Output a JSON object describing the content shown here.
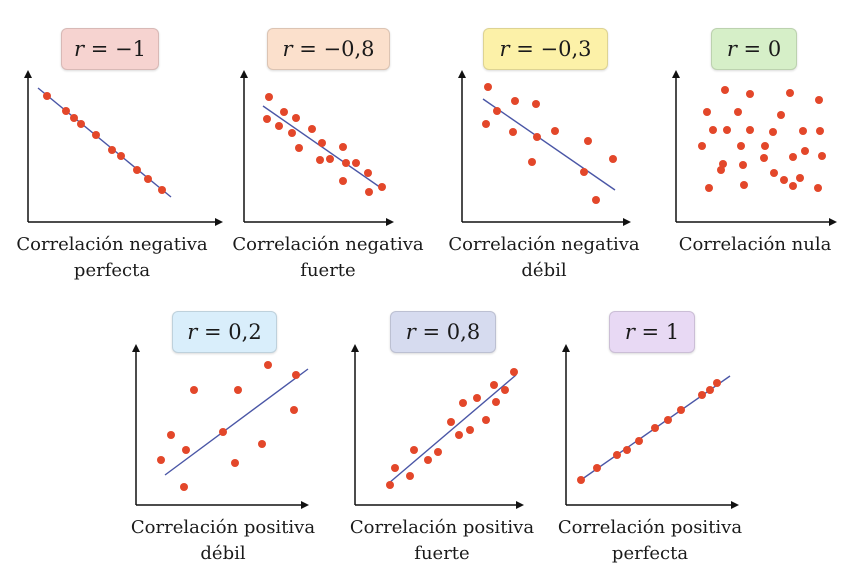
{
  "colors": {
    "dot": "#e3472a",
    "line": "#4a56a6",
    "axis": "#111111"
  },
  "panels": [
    {
      "id": "r-minus-1",
      "badge_r": "r",
      "badge_value": "= −1",
      "badge_color": "#f6d3d0",
      "caption_line1": "Correlación negativa",
      "caption_line2": "perfecta"
    },
    {
      "id": "r-minus-0-8",
      "badge_r": "r",
      "badge_value": "= −0,8",
      "badge_color": "#fbe0cc",
      "caption_line1": "Correlación negativa",
      "caption_line2": "fuerte"
    },
    {
      "id": "r-minus-0-3",
      "badge_r": "r",
      "badge_value": "= −0,3",
      "badge_color": "#fcf1a8",
      "caption_line1": "Correlación negativa",
      "caption_line2": "débil"
    },
    {
      "id": "r-0",
      "badge_r": "r",
      "badge_value": "= 0",
      "badge_color": "#d6efc8",
      "caption_line1": "Correlación nula",
      "caption_line2": ""
    },
    {
      "id": "r-0-2",
      "badge_r": "r",
      "badge_value": "= 0,2",
      "badge_color": "#d9eefb",
      "caption_line1": "Correlación positiva",
      "caption_line2": "débil"
    },
    {
      "id": "r-0-8",
      "badge_r": "r",
      "badge_value": "= 0,8",
      "badge_color": "#d6dbef",
      "caption_line1": "Correlación positiva",
      "caption_line2": "fuerte"
    },
    {
      "id": "r-1",
      "badge_r": "r",
      "badge_value": "= 1",
      "badge_color": "#e8d9f4",
      "caption_line1": "Correlación positiva",
      "caption_line2": "perfecta"
    }
  ]
}
